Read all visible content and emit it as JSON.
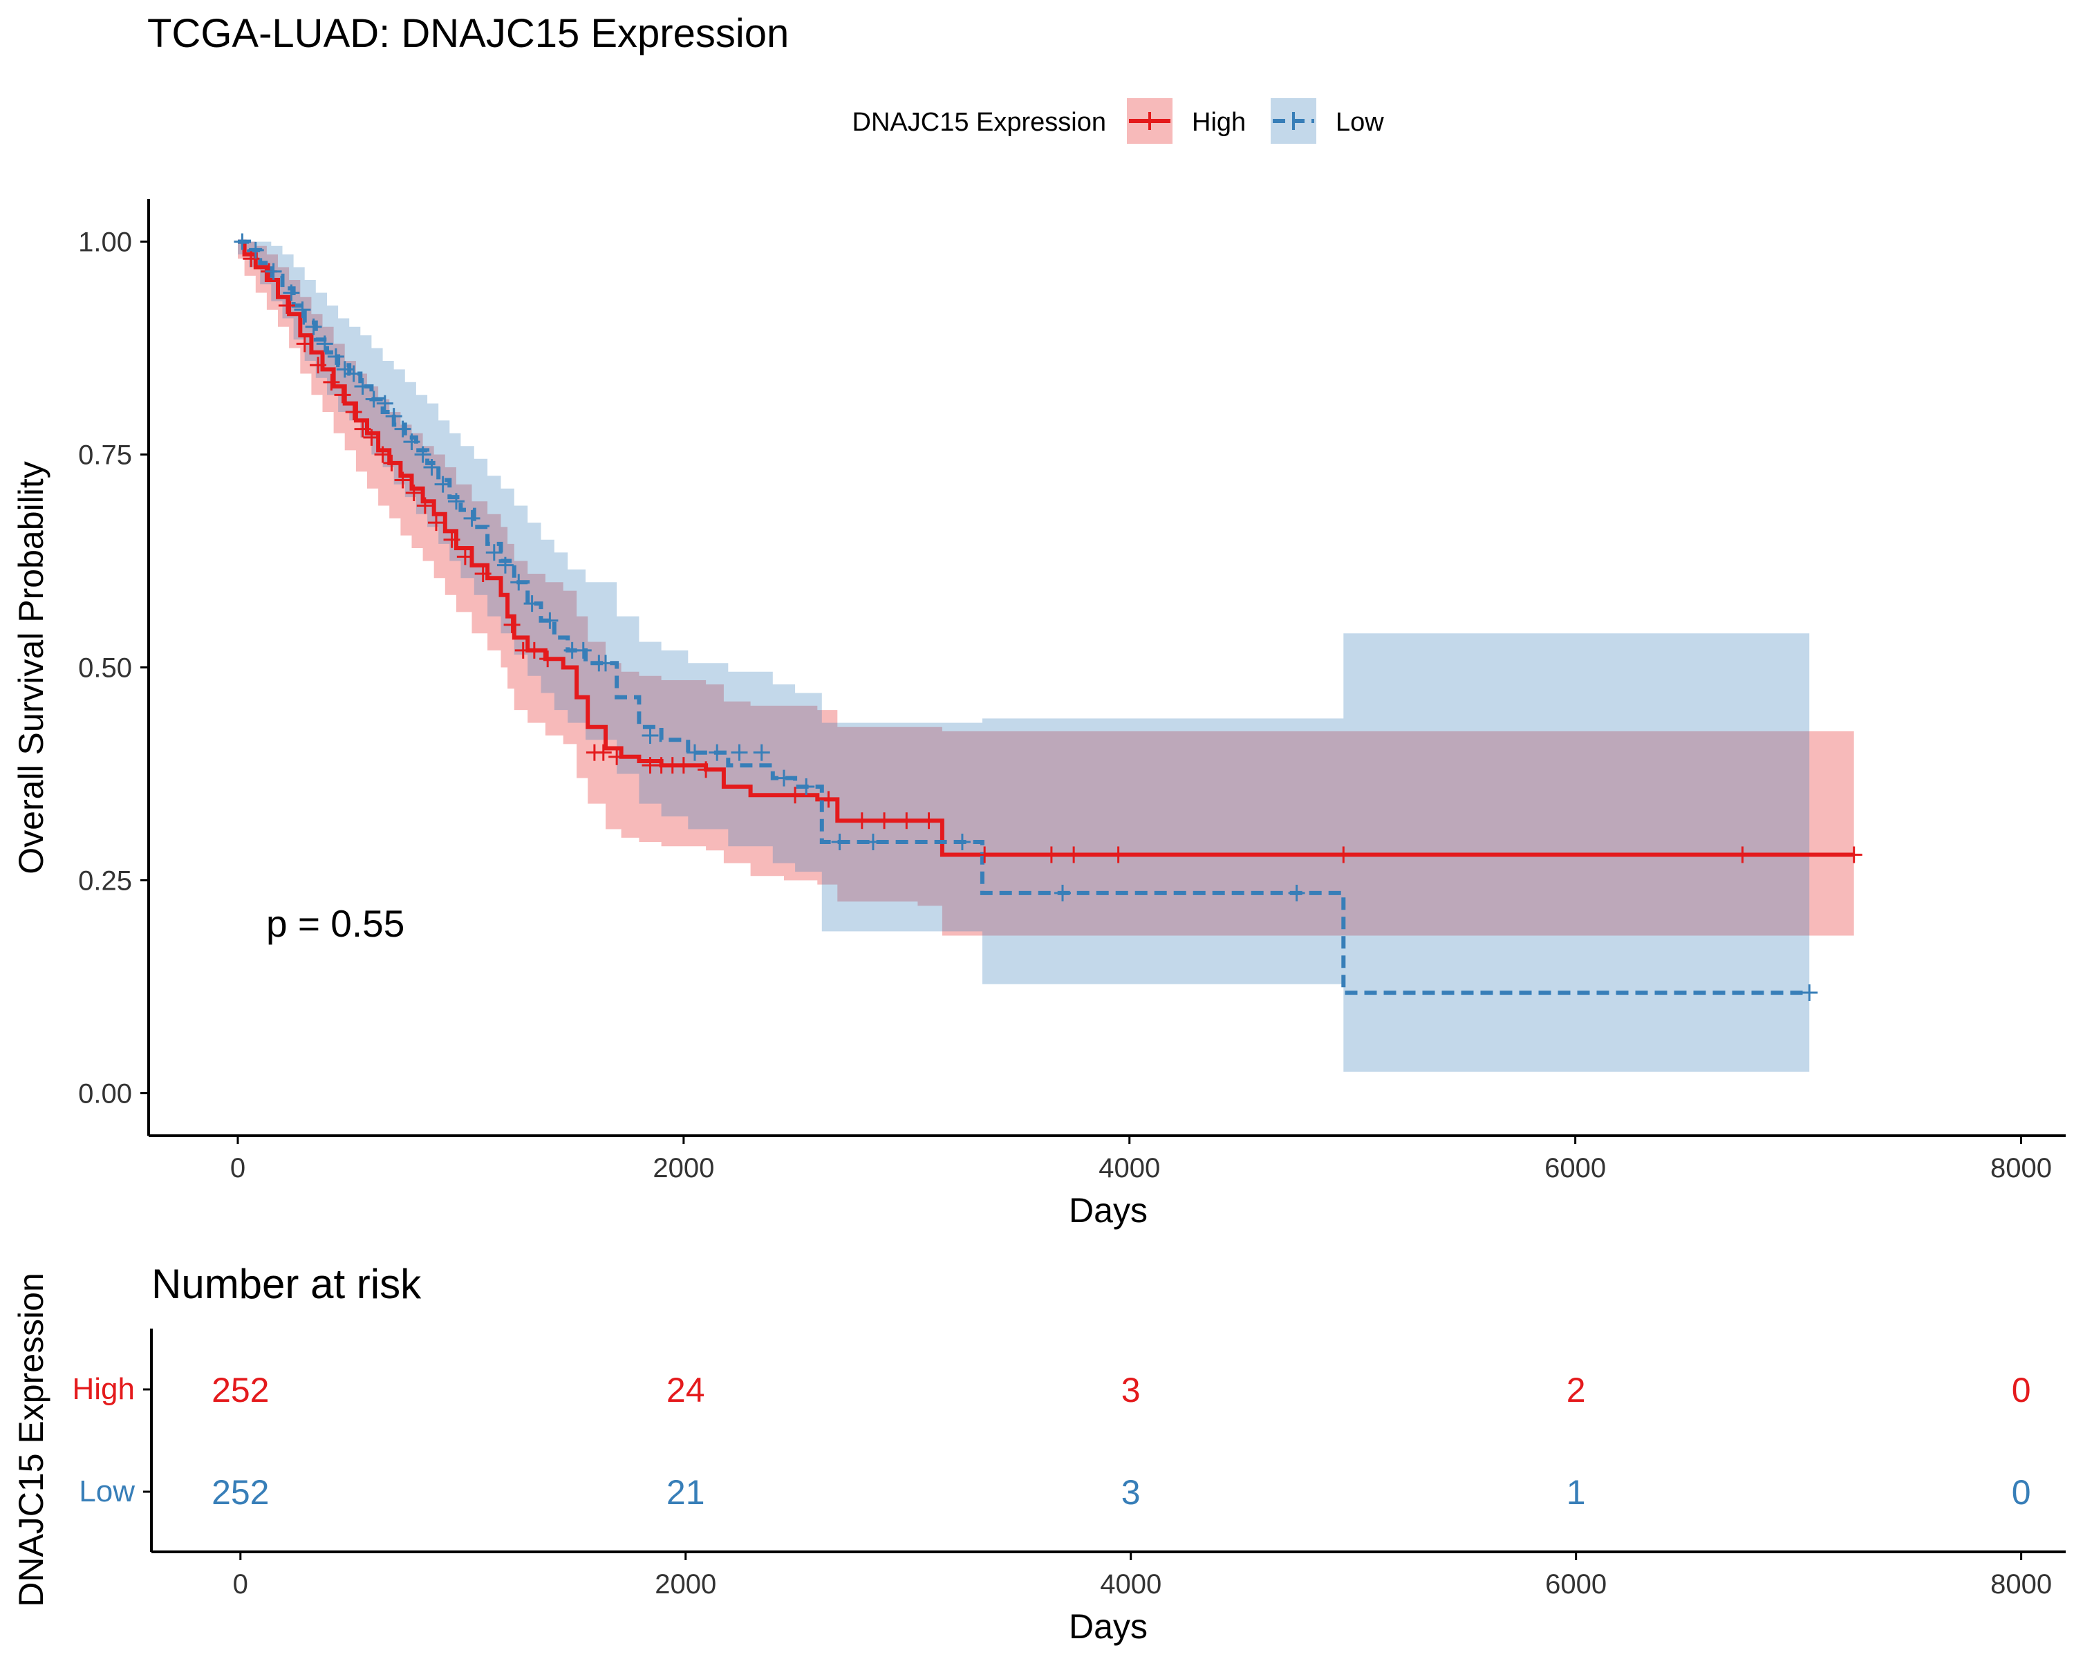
{
  "figure": {
    "title": "TCGA-LUAD: DNAJC15 Expression",
    "legend_title": "DNAJC15 Expression",
    "pvalue_text": "p = 0.55",
    "risk_title": "Number at risk",
    "risk_ylabel": "DNAJC15 Expression"
  },
  "chart_data": [
    {
      "type": "line",
      "subtype": "kaplan-meier",
      "title": "TCGA-LUAD: DNAJC15 Expression",
      "xlabel": "Days",
      "ylabel": "Overall Survival Probability",
      "xlim": [
        -400,
        8200
      ],
      "ylim": [
        -0.05,
        1.05
      ],
      "x_ticks": [
        0,
        2000,
        4000,
        6000,
        8000
      ],
      "y_ticks": [
        0,
        0.25,
        0.5,
        0.75,
        1.0
      ],
      "y_tick_labels": [
        "0.00",
        "0.25",
        "0.50",
        "0.75",
        "1.00"
      ],
      "grid": false,
      "legend_position": "top",
      "annotation": "p = 0.55",
      "series": [
        {
          "name": "High",
          "color": "#E41A1C",
          "line_style": "solid",
          "x": [
            0,
            30,
            80,
            130,
            180,
            230,
            280,
            330,
            380,
            430,
            480,
            530,
            580,
            630,
            680,
            730,
            780,
            830,
            880,
            930,
            980,
            1050,
            1120,
            1180,
            1210,
            1240,
            1300,
            1380,
            1460,
            1520,
            1570,
            1650,
            1720,
            1800,
            1900,
            2000,
            2100,
            2180,
            2300,
            2450,
            2600,
            2690,
            2800,
            3050,
            3160,
            3650,
            4960,
            7250
          ],
          "y": [
            1.0,
            0.985,
            0.97,
            0.955,
            0.935,
            0.915,
            0.89,
            0.87,
            0.85,
            0.83,
            0.81,
            0.79,
            0.775,
            0.755,
            0.74,
            0.725,
            0.71,
            0.695,
            0.68,
            0.66,
            0.64,
            0.62,
            0.605,
            0.585,
            0.56,
            0.535,
            0.52,
            0.51,
            0.5,
            0.465,
            0.43,
            0.405,
            0.395,
            0.39,
            0.385,
            0.385,
            0.38,
            0.36,
            0.35,
            0.35,
            0.345,
            0.32,
            0.32,
            0.32,
            0.28,
            0.28,
            0.28,
            0.28
          ],
          "ci_lower": [
            0.98,
            0.96,
            0.94,
            0.92,
            0.9,
            0.875,
            0.845,
            0.82,
            0.8,
            0.775,
            0.755,
            0.73,
            0.71,
            0.69,
            0.675,
            0.655,
            0.64,
            0.625,
            0.605,
            0.585,
            0.565,
            0.54,
            0.52,
            0.5,
            0.475,
            0.45,
            0.435,
            0.42,
            0.41,
            0.37,
            0.34,
            0.31,
            0.3,
            0.295,
            0.29,
            0.29,
            0.285,
            0.27,
            0.255,
            0.25,
            0.245,
            0.225,
            0.225,
            0.22,
            0.185,
            0.185,
            0.185,
            0.185
          ],
          "ci_upper": [
            1.0,
            1.0,
            0.995,
            0.985,
            0.97,
            0.955,
            0.935,
            0.915,
            0.9,
            0.88,
            0.86,
            0.845,
            0.83,
            0.815,
            0.8,
            0.785,
            0.775,
            0.76,
            0.75,
            0.735,
            0.715,
            0.695,
            0.68,
            0.665,
            0.645,
            0.625,
            0.61,
            0.6,
            0.59,
            0.56,
            0.53,
            0.505,
            0.495,
            0.49,
            0.485,
            0.485,
            0.48,
            0.46,
            0.455,
            0.455,
            0.45,
            0.43,
            0.43,
            0.43,
            0.425,
            0.425,
            0.425,
            0.425
          ],
          "censor_x": [
            60,
            140,
            220,
            300,
            360,
            420,
            470,
            520,
            560,
            600,
            650,
            690,
            740,
            790,
            840,
            890,
            960,
            1020,
            1100,
            1230,
            1280,
            1330,
            1390,
            1600,
            1640,
            1700,
            1850,
            1900,
            1950,
            2000,
            2100,
            2500,
            2650,
            2800,
            2900,
            3000,
            3100,
            3350,
            3650,
            3750,
            3950,
            4960,
            6750,
            7250
          ],
          "censor_y": [
            0.98,
            0.965,
            0.925,
            0.88,
            0.855,
            0.835,
            0.82,
            0.8,
            0.78,
            0.77,
            0.75,
            0.74,
            0.72,
            0.705,
            0.69,
            0.67,
            0.65,
            0.63,
            0.61,
            0.55,
            0.52,
            0.52,
            0.51,
            0.4,
            0.4,
            0.395,
            0.385,
            0.385,
            0.385,
            0.385,
            0.38,
            0.35,
            0.345,
            0.32,
            0.32,
            0.32,
            0.32,
            0.28,
            0.28,
            0.28,
            0.28,
            0.28,
            0.28,
            0.28
          ]
        },
        {
          "name": "Low",
          "color": "#377EB8",
          "line_style": "dashed",
          "x": [
            0,
            50,
            100,
            150,
            200,
            250,
            300,
            350,
            400,
            450,
            500,
            550,
            600,
            650,
            700,
            750,
            800,
            850,
            900,
            950,
            1000,
            1060,
            1120,
            1180,
            1240,
            1300,
            1360,
            1420,
            1480,
            1560,
            1700,
            1800,
            1900,
            2020,
            2200,
            2400,
            2500,
            2620,
            2700,
            2900,
            3150,
            3340,
            3500,
            4960,
            7050
          ],
          "y": [
            1.0,
            0.99,
            0.975,
            0.96,
            0.945,
            0.925,
            0.905,
            0.885,
            0.87,
            0.855,
            0.845,
            0.83,
            0.815,
            0.8,
            0.785,
            0.77,
            0.755,
            0.74,
            0.72,
            0.7,
            0.685,
            0.665,
            0.645,
            0.625,
            0.6,
            0.575,
            0.555,
            0.535,
            0.52,
            0.505,
            0.465,
            0.43,
            0.415,
            0.4,
            0.385,
            0.37,
            0.36,
            0.295,
            0.295,
            0.295,
            0.295,
            0.235,
            0.235,
            0.118,
            0.118
          ],
          "ci_lower": [
            0.985,
            0.97,
            0.95,
            0.93,
            0.91,
            0.885,
            0.86,
            0.84,
            0.82,
            0.8,
            0.79,
            0.77,
            0.75,
            0.735,
            0.715,
            0.7,
            0.68,
            0.665,
            0.645,
            0.625,
            0.605,
            0.585,
            0.56,
            0.54,
            0.515,
            0.49,
            0.47,
            0.45,
            0.435,
            0.415,
            0.375,
            0.34,
            0.325,
            0.31,
            0.29,
            0.27,
            0.26,
            0.19,
            0.19,
            0.19,
            0.19,
            0.128,
            0.128,
            0.025,
            0.025
          ],
          "ci_upper": [
            1.0,
            1.0,
            1.0,
            0.995,
            0.985,
            0.97,
            0.955,
            0.94,
            0.925,
            0.91,
            0.9,
            0.89,
            0.875,
            0.86,
            0.85,
            0.835,
            0.82,
            0.81,
            0.79,
            0.775,
            0.76,
            0.745,
            0.725,
            0.71,
            0.69,
            0.67,
            0.65,
            0.635,
            0.615,
            0.6,
            0.56,
            0.53,
            0.52,
            0.505,
            0.495,
            0.48,
            0.47,
            0.435,
            0.435,
            0.435,
            0.435,
            0.44,
            0.44,
            0.54,
            0.54
          ],
          "censor_x": [
            20,
            80,
            160,
            240,
            290,
            340,
            390,
            440,
            480,
            520,
            560,
            610,
            660,
            700,
            740,
            780,
            830,
            870,
            920,
            980,
            1050,
            1150,
            1200,
            1260,
            1320,
            1400,
            1500,
            1550,
            1620,
            1650,
            1850,
            2050,
            2150,
            2250,
            2350,
            2450,
            2550,
            2700,
            2850,
            3250,
            3700,
            4750,
            7050
          ],
          "censor_y": [
            1.0,
            0.99,
            0.965,
            0.94,
            0.92,
            0.9,
            0.88,
            0.865,
            0.85,
            0.845,
            0.83,
            0.815,
            0.81,
            0.795,
            0.78,
            0.765,
            0.75,
            0.735,
            0.715,
            0.695,
            0.675,
            0.635,
            0.62,
            0.6,
            0.575,
            0.555,
            0.52,
            0.52,
            0.505,
            0.505,
            0.42,
            0.4,
            0.4,
            0.4,
            0.4,
            0.37,
            0.36,
            0.295,
            0.295,
            0.295,
            0.235,
            0.235,
            0.118
          ]
        }
      ]
    },
    {
      "type": "table",
      "title": "Number at risk",
      "xlabel": "Days",
      "ylabel": "DNAJC15 Expression",
      "xlim": [
        -400,
        8200
      ],
      "x_ticks": [
        0,
        2000,
        4000,
        6000,
        8000
      ],
      "rows": [
        {
          "name": "High",
          "color": "#E41A1C",
          "times": [
            0,
            2000,
            4000,
            6000,
            8000
          ],
          "values": [
            "252",
            "24",
            "3",
            "2",
            "0"
          ]
        },
        {
          "name": "Low",
          "color": "#377EB8",
          "times": [
            0,
            2000,
            4000,
            6000,
            8000
          ],
          "values": [
            "252",
            "21",
            "3",
            "1",
            "0"
          ]
        }
      ]
    }
  ]
}
